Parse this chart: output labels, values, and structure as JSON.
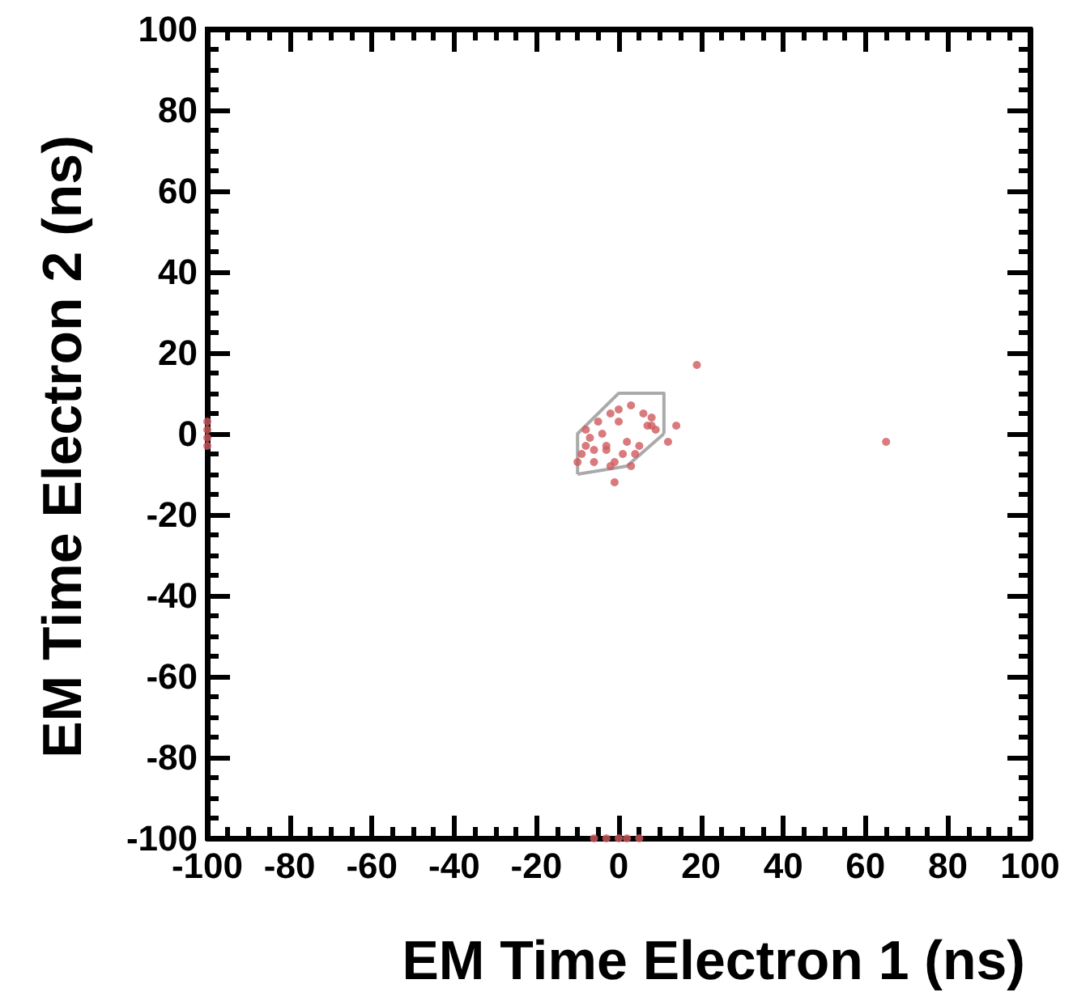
{
  "chart_data": {
    "type": "scatter",
    "xlabel": "EM Time Electron 1 (ns)",
    "ylabel": "EM Time Electron 2 (ns)",
    "xlim": [
      -100,
      100
    ],
    "ylim": [
      -100,
      100
    ],
    "xticks": [
      -100,
      -80,
      -60,
      -40,
      -20,
      0,
      20,
      40,
      60,
      80,
      100
    ],
    "yticks": [
      -100,
      -80,
      -60,
      -40,
      -20,
      0,
      20,
      40,
      60,
      80,
      100
    ],
    "marker": "circle",
    "series": [
      {
        "type": "line",
        "color": "#aaaaaa",
        "marker": "none",
        "x": [
          -10,
          -10,
          0,
          11,
          11
        ],
        "values": [
          -10,
          0,
          10,
          10,
          0
        ]
      },
      {
        "type": "line",
        "color": "#aaaaaa",
        "marker": "none",
        "x": [
          -10,
          2,
          11
        ],
        "values": [
          -10,
          -8,
          0
        ]
      },
      {
        "color": "#d05a5e",
        "x": [
          0,
          3,
          6,
          8,
          -2,
          -5,
          -8,
          -7,
          -3,
          1,
          5,
          9,
          -6,
          -1,
          4,
          -8,
          -4,
          0,
          7,
          -6,
          -2,
          2,
          -3,
          -9,
          -10,
          -1,
          8,
          3,
          19,
          14,
          12,
          65,
          -100,
          -100,
          -100,
          -100,
          -6,
          -3,
          0,
          2,
          5
        ],
        "values": [
          6,
          7,
          5,
          4,
          5,
          3,
          1,
          -1,
          -3,
          -5,
          -3,
          1,
          -4,
          -7,
          -5,
          -3,
          0,
          3,
          2,
          -7,
          -8,
          -2,
          -4,
          -5,
          -7,
          -12,
          2,
          -8,
          17,
          2,
          -2,
          -2,
          3,
          1,
          -1,
          -3,
          -100,
          -100,
          -100,
          -100,
          -100
        ]
      }
    ]
  }
}
